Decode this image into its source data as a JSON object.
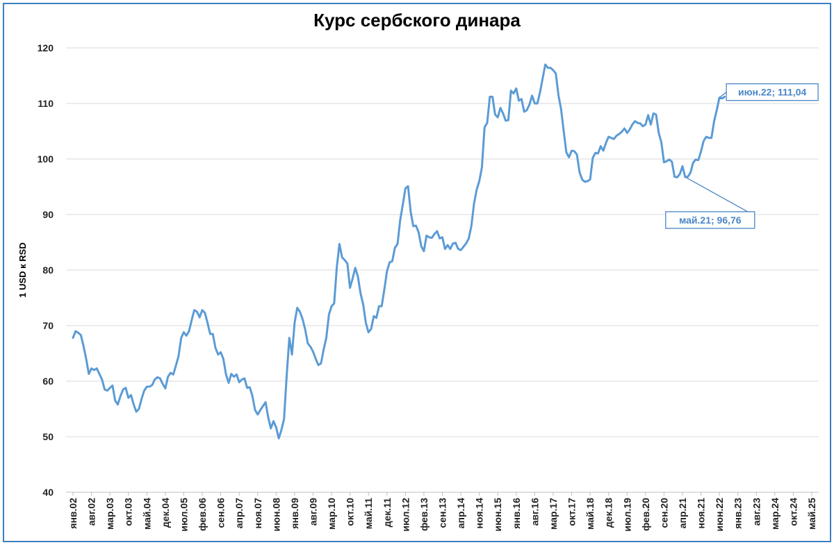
{
  "chart_data": {
    "type": "line",
    "title": "Курс сербского динара",
    "xlabel": "",
    "ylabel": "1 USD к RSD",
    "ylim": [
      40,
      120
    ],
    "yticks": [
      40,
      50,
      60,
      70,
      80,
      90,
      100,
      110,
      120
    ],
    "grid": "horizontal",
    "legend": "none",
    "line_color": "#5b9bd5",
    "x_start": "янв.02",
    "x_end": "май.25",
    "x_tick_labels": [
      "янв.02",
      "авг.02",
      "мар.03",
      "окт.03",
      "май.04",
      "дек.04",
      "июл.05",
      "фев.06",
      "сен.06",
      "апр.07",
      "ноя.07",
      "июн.08",
      "янв.09",
      "авг.09",
      "мар.10",
      "окт.10",
      "май.11",
      "дек.11",
      "июл.12",
      "фев.13",
      "сен.13",
      "апр.14",
      "ноя.14",
      "июн.15",
      "янв.16",
      "авг.16",
      "мар.17",
      "окт.17",
      "май.18",
      "дек.18",
      "июл.19",
      "фев.20",
      "сен.20",
      "апр.21",
      "ноя.21",
      "июн.22",
      "янв.23",
      "авг.23",
      "мар.24",
      "окт.24",
      "май.25"
    ],
    "series": [
      {
        "points": [
          [
            "янв.02",
            67.8
          ],
          [
            "фев.02",
            69.0
          ],
          [
            "мар.02",
            68.7
          ],
          [
            "апр.02",
            68.3
          ],
          [
            "май.02",
            66.3
          ],
          [
            "июн.02",
            64.0
          ],
          [
            "июл.02",
            61.3
          ],
          [
            "авг.02",
            62.3
          ],
          [
            "сен.02",
            62.0
          ],
          [
            "окт.02",
            62.3
          ],
          [
            "ноя.02",
            61.3
          ],
          [
            "дек.02",
            60.3
          ],
          [
            "янв.03",
            58.5
          ],
          [
            "фев.03",
            58.3
          ],
          [
            "мар.03",
            58.8
          ],
          [
            "апр.03",
            59.2
          ],
          [
            "май.03",
            56.5
          ],
          [
            "июн.03",
            55.8
          ],
          [
            "июл.03",
            57.3
          ],
          [
            "авг.03",
            58.5
          ],
          [
            "сен.03",
            58.8
          ],
          [
            "окт.03",
            57.0
          ],
          [
            "ноя.03",
            57.5
          ],
          [
            "дек.03",
            55.8
          ],
          [
            "янв.04",
            54.5
          ],
          [
            "фев.04",
            55.0
          ],
          [
            "мар.04",
            56.8
          ],
          [
            "апр.04",
            58.3
          ],
          [
            "май.04",
            59.0
          ],
          [
            "июн.04",
            59.0
          ],
          [
            "июл.04",
            59.3
          ],
          [
            "авг.04",
            60.3
          ],
          [
            "сен.04",
            60.7
          ],
          [
            "окт.04",
            60.5
          ],
          [
            "ноя.04",
            59.5
          ],
          [
            "дек.04",
            58.7
          ],
          [
            "янв.05",
            60.8
          ],
          [
            "фев.05",
            61.5
          ],
          [
            "мар.05",
            61.2
          ],
          [
            "апр.05",
            62.8
          ],
          [
            "май.05",
            64.5
          ],
          [
            "июн.05",
            67.8
          ],
          [
            "июл.05",
            68.8
          ],
          [
            "авг.05",
            68.2
          ],
          [
            "сен.05",
            69.0
          ],
          [
            "окт.05",
            71.0
          ],
          [
            "ноя.05",
            72.8
          ],
          [
            "дек.05",
            72.5
          ],
          [
            "янв.06",
            71.5
          ],
          [
            "фев.06",
            72.8
          ],
          [
            "мар.06",
            72.3
          ],
          [
            "апр.06",
            70.5
          ],
          [
            "май.06",
            68.5
          ],
          [
            "июн.06",
            68.5
          ],
          [
            "июл.06",
            66.0
          ],
          [
            "авг.06",
            64.8
          ],
          [
            "сен.06",
            65.2
          ],
          [
            "окт.06",
            64.0
          ],
          [
            "ноя.06",
            61.2
          ],
          [
            "дек.06",
            59.7
          ],
          [
            "янв.07",
            61.3
          ],
          [
            "фев.07",
            60.8
          ],
          [
            "мар.07",
            61.2
          ],
          [
            "апр.07",
            59.8
          ],
          [
            "май.07",
            60.3
          ],
          [
            "июн.07",
            60.5
          ],
          [
            "июл.07",
            58.8
          ],
          [
            "авг.07",
            58.9
          ],
          [
            "сен.07",
            57.3
          ],
          [
            "окт.07",
            54.8
          ],
          [
            "ноя.07",
            54.0
          ],
          [
            "дек.07",
            54.8
          ],
          [
            "янв.08",
            55.5
          ],
          [
            "фев.08",
            56.2
          ],
          [
            "мар.08",
            53.5
          ],
          [
            "апр.08",
            51.5
          ],
          [
            "май.08",
            52.8
          ],
          [
            "июн.08",
            51.7
          ],
          [
            "июл.08",
            49.7
          ],
          [
            "авг.08",
            51.2
          ],
          [
            "сен.08",
            53.2
          ],
          [
            "окт.08",
            61.0
          ],
          [
            "ноя.08",
            67.8
          ],
          [
            "дек.08",
            64.8
          ],
          [
            "янв.09",
            70.5
          ],
          [
            "фев.09",
            73.2
          ],
          [
            "мар.09",
            72.5
          ],
          [
            "апр.09",
            71.2
          ],
          [
            "май.09",
            69.3
          ],
          [
            "июн.09",
            66.8
          ],
          [
            "июл.09",
            66.2
          ],
          [
            "авг.09",
            65.3
          ],
          [
            "сен.09",
            64.0
          ],
          [
            "окт.09",
            62.9
          ],
          [
            "ноя.09",
            63.2
          ],
          [
            "дек.09",
            65.7
          ],
          [
            "янв.10",
            67.8
          ],
          [
            "фев.10",
            72.0
          ],
          [
            "мар.10",
            73.5
          ],
          [
            "апр.10",
            74.0
          ],
          [
            "май.10",
            80.5
          ],
          [
            "июн.10",
            84.7
          ],
          [
            "июл.10",
            82.3
          ],
          [
            "авг.10",
            81.8
          ],
          [
            "сен.10",
            81.2
          ],
          [
            "окт.10",
            76.8
          ],
          [
            "ноя.10",
            78.5
          ],
          [
            "дек.10",
            80.4
          ],
          [
            "янв.11",
            78.8
          ],
          [
            "фев.11",
            75.8
          ],
          [
            "мар.11",
            73.8
          ],
          [
            "апр.11",
            70.5
          ],
          [
            "май.11",
            68.8
          ],
          [
            "июн.11",
            69.4
          ],
          [
            "июл.11",
            71.7
          ],
          [
            "авг.11",
            71.4
          ],
          [
            "сен.11",
            73.5
          ],
          [
            "окт.11",
            73.5
          ],
          [
            "ноя.11",
            76.5
          ],
          [
            "дек.11",
            79.8
          ],
          [
            "янв.12",
            81.4
          ],
          [
            "фев.12",
            81.6
          ],
          [
            "мар.12",
            84.0
          ],
          [
            "апр.12",
            84.7
          ],
          [
            "май.12",
            89.0
          ],
          [
            "июн.12",
            91.8
          ],
          [
            "июл.12",
            94.7
          ],
          [
            "авг.12",
            95.1
          ],
          [
            "сен.12",
            90.5
          ],
          [
            "окт.12",
            87.9
          ],
          [
            "ноя.12",
            88.0
          ],
          [
            "дек.12",
            86.8
          ],
          [
            "янв.13",
            84.3
          ],
          [
            "фев.13",
            83.4
          ],
          [
            "мар.13",
            86.2
          ],
          [
            "апр.13",
            85.9
          ],
          [
            "май.13",
            85.8
          ],
          [
            "июн.13",
            86.5
          ],
          [
            "июл.13",
            87.0
          ],
          [
            "авг.13",
            85.7
          ],
          [
            "сен.13",
            85.9
          ],
          [
            "окт.13",
            83.8
          ],
          [
            "ноя.13",
            84.5
          ],
          [
            "дек.13",
            83.8
          ],
          [
            "янв.14",
            84.8
          ],
          [
            "фев.14",
            84.9
          ],
          [
            "мар.14",
            83.8
          ],
          [
            "апр.14",
            83.6
          ],
          [
            "май.14",
            84.2
          ],
          [
            "июн.14",
            84.8
          ],
          [
            "июл.14",
            85.7
          ],
          [
            "авг.14",
            88.0
          ],
          [
            "сен.14",
            92.0
          ],
          [
            "окт.14",
            94.5
          ],
          [
            "ноя.14",
            96.0
          ],
          [
            "дек.14",
            98.5
          ],
          [
            "янв.15",
            105.7
          ],
          [
            "фев.15",
            106.5
          ],
          [
            "мар.15",
            111.2
          ],
          [
            "апр.15",
            111.2
          ],
          [
            "май.15",
            108.0
          ],
          [
            "июн.15",
            107.5
          ],
          [
            "июл.15",
            109.2
          ],
          [
            "авг.15",
            108.2
          ],
          [
            "сен.15",
            106.9
          ],
          [
            "окт.15",
            107.0
          ],
          [
            "ноя.15",
            112.3
          ],
          [
            "дек.15",
            111.8
          ],
          [
            "янв.16",
            112.7
          ],
          [
            "фев.16",
            110.5
          ],
          [
            "мар.16",
            110.8
          ],
          [
            "апр.16",
            108.5
          ],
          [
            "май.16",
            108.8
          ],
          [
            "июн.16",
            109.8
          ],
          [
            "июл.16",
            111.4
          ],
          [
            "авг.16",
            110.0
          ],
          [
            "сен.16",
            110.0
          ],
          [
            "окт.16",
            112.0
          ],
          [
            "ноя.16",
            114.5
          ],
          [
            "дек.16",
            117.0
          ],
          [
            "янв.17",
            116.4
          ],
          [
            "фев.17",
            116.4
          ],
          [
            "мар.17",
            116.0
          ],
          [
            "апр.17",
            115.4
          ],
          [
            "май.17",
            111.5
          ],
          [
            "июн.17",
            109.0
          ],
          [
            "июл.17",
            105.0
          ],
          [
            "авг.17",
            101.2
          ],
          [
            "сен.17",
            100.3
          ],
          [
            "окт.17",
            101.5
          ],
          [
            "ноя.17",
            101.4
          ],
          [
            "дек.17",
            100.8
          ],
          [
            "янв.18",
            97.6
          ],
          [
            "фев.18",
            96.3
          ],
          [
            "мар.18",
            95.9
          ],
          [
            "апр.18",
            96.0
          ],
          [
            "май.18",
            96.3
          ],
          [
            "июн.18",
            100.2
          ],
          [
            "июл.18",
            101.1
          ],
          [
            "авг.18",
            101.0
          ],
          [
            "сен.18",
            102.3
          ],
          [
            "окт.18",
            101.5
          ],
          [
            "ноя.18",
            102.9
          ],
          [
            "дек.18",
            104.0
          ],
          [
            "янв.19",
            103.8
          ],
          [
            "фев.19",
            103.6
          ],
          [
            "мар.19",
            104.2
          ],
          [
            "апр.19",
            104.5
          ],
          [
            "май.19",
            104.9
          ],
          [
            "июн.19",
            105.5
          ],
          [
            "июл.19",
            104.7
          ],
          [
            "авг.19",
            105.3
          ],
          [
            "сен.19",
            106.2
          ],
          [
            "окт.19",
            106.8
          ],
          [
            "ноя.19",
            106.5
          ],
          [
            "дек.19",
            106.4
          ],
          [
            "янв.20",
            105.9
          ],
          [
            "фев.20",
            106.2
          ],
          [
            "мар.20",
            107.9
          ],
          [
            "апр.20",
            106.2
          ],
          [
            "май.20",
            108.2
          ],
          [
            "июн.20",
            108.0
          ],
          [
            "июл.20",
            104.7
          ],
          [
            "авг.20",
            103.0
          ],
          [
            "сен.20",
            99.4
          ],
          [
            "окт.20",
            99.6
          ],
          [
            "ноя.20",
            99.9
          ],
          [
            "дек.20",
            99.5
          ],
          [
            "янв.21",
            96.8
          ],
          [
            "фев.21",
            96.7
          ],
          [
            "мар.21",
            97.3
          ],
          [
            "апр.21",
            98.7
          ],
          [
            "май.21",
            96.76
          ],
          [
            "июн.21",
            96.8
          ],
          [
            "июл.21",
            97.5
          ],
          [
            "авг.21",
            99.3
          ],
          [
            "сен.21",
            99.9
          ],
          [
            "окт.21",
            99.8
          ],
          [
            "ноя.21",
            101.3
          ],
          [
            "дек.21",
            103.2
          ],
          [
            "янв.22",
            104.0
          ],
          [
            "фев.22",
            103.8
          ],
          [
            "мар.22",
            103.8
          ],
          [
            "апр.22",
            106.8
          ],
          [
            "май.22",
            108.8
          ],
          [
            "июн.22",
            111.04
          ],
          [
            "июл.22",
            110.9
          ],
          [
            "авг.22",
            111.2
          ]
        ]
      }
    ],
    "annotations": [
      {
        "x": "июн.22",
        "y": 111.04,
        "label": "июн.22;   111,04"
      },
      {
        "x": "май.21",
        "y": 96.76,
        "label": "май.21;   96,76"
      }
    ]
  }
}
